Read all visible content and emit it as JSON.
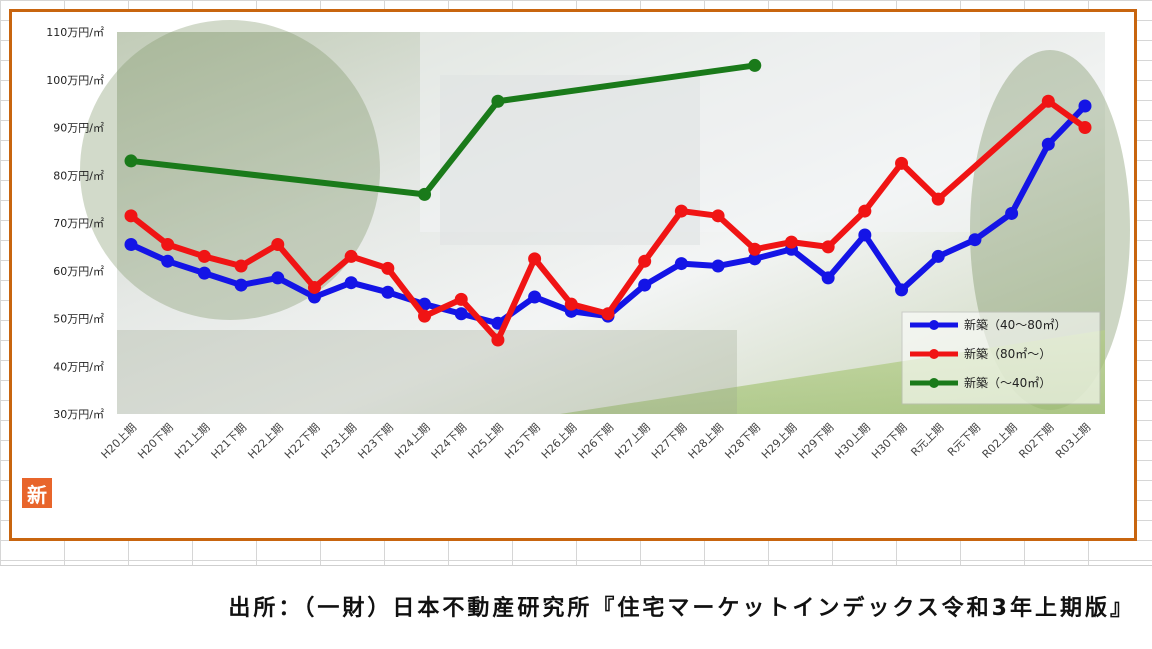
{
  "chart_data": {
    "type": "line",
    "categories": [
      "H20上期",
      "H20下期",
      "H21上期",
      "H21下期",
      "H22上期",
      "H22下期",
      "H23上期",
      "H23下期",
      "H24上期",
      "H24下期",
      "H25上期",
      "H25下期",
      "H26上期",
      "H26下期",
      "H27上期",
      "H27下期",
      "H28上期",
      "H28下期",
      "H29上期",
      "H29下期",
      "H30上期",
      "H30下期",
      "R元上期",
      "R元下期",
      "R02上期",
      "R02下期",
      "R03上期"
    ],
    "y_ticks": [
      "30万円/㎡",
      "40万円/㎡",
      "50万円/㎡",
      "60万円/㎡",
      "70万円/㎡",
      "80万円/㎡",
      "90万円/㎡",
      "100万円/㎡",
      "110万円/㎡"
    ],
    "ylim": [
      30,
      110
    ],
    "legend_position": "bottom-right",
    "series": [
      {
        "name": "新築（40～80㎡）",
        "color": "#1414e6",
        "values": [
          65.5,
          62,
          59.5,
          57,
          58.5,
          54.5,
          57.5,
          55.5,
          53,
          51,
          49,
          54.5,
          51.5,
          50.5,
          57,
          61.5,
          61,
          62.5,
          64.5,
          58.5,
          67.5,
          56,
          63,
          66.5,
          72,
          86.5,
          94.5
        ]
      },
      {
        "name": "新築（80㎡～）",
        "color": "#f01414",
        "values": [
          71.5,
          65.5,
          63,
          61,
          65.5,
          56.5,
          63,
          60.5,
          50.5,
          54,
          45.5,
          62.5,
          53,
          51,
          62,
          72.5,
          71.5,
          64.5,
          66,
          65,
          72.5,
          82.5,
          75,
          null,
          null,
          95.5,
          90
        ]
      },
      {
        "name": "新築（～40㎡）",
        "color": "#1a7a1a",
        "values": [
          83,
          null,
          null,
          null,
          null,
          null,
          null,
          null,
          76,
          null,
          95.5,
          null,
          null,
          null,
          null,
          null,
          null,
          103,
          null,
          null,
          null,
          null,
          null,
          null,
          null,
          null,
          null
        ]
      }
    ]
  },
  "footer": {
    "source_text": "出所：（一財）日本不動産研究所『住宅マーケットインデックス令和3年上期版』",
    "logo_glyph": "新"
  }
}
